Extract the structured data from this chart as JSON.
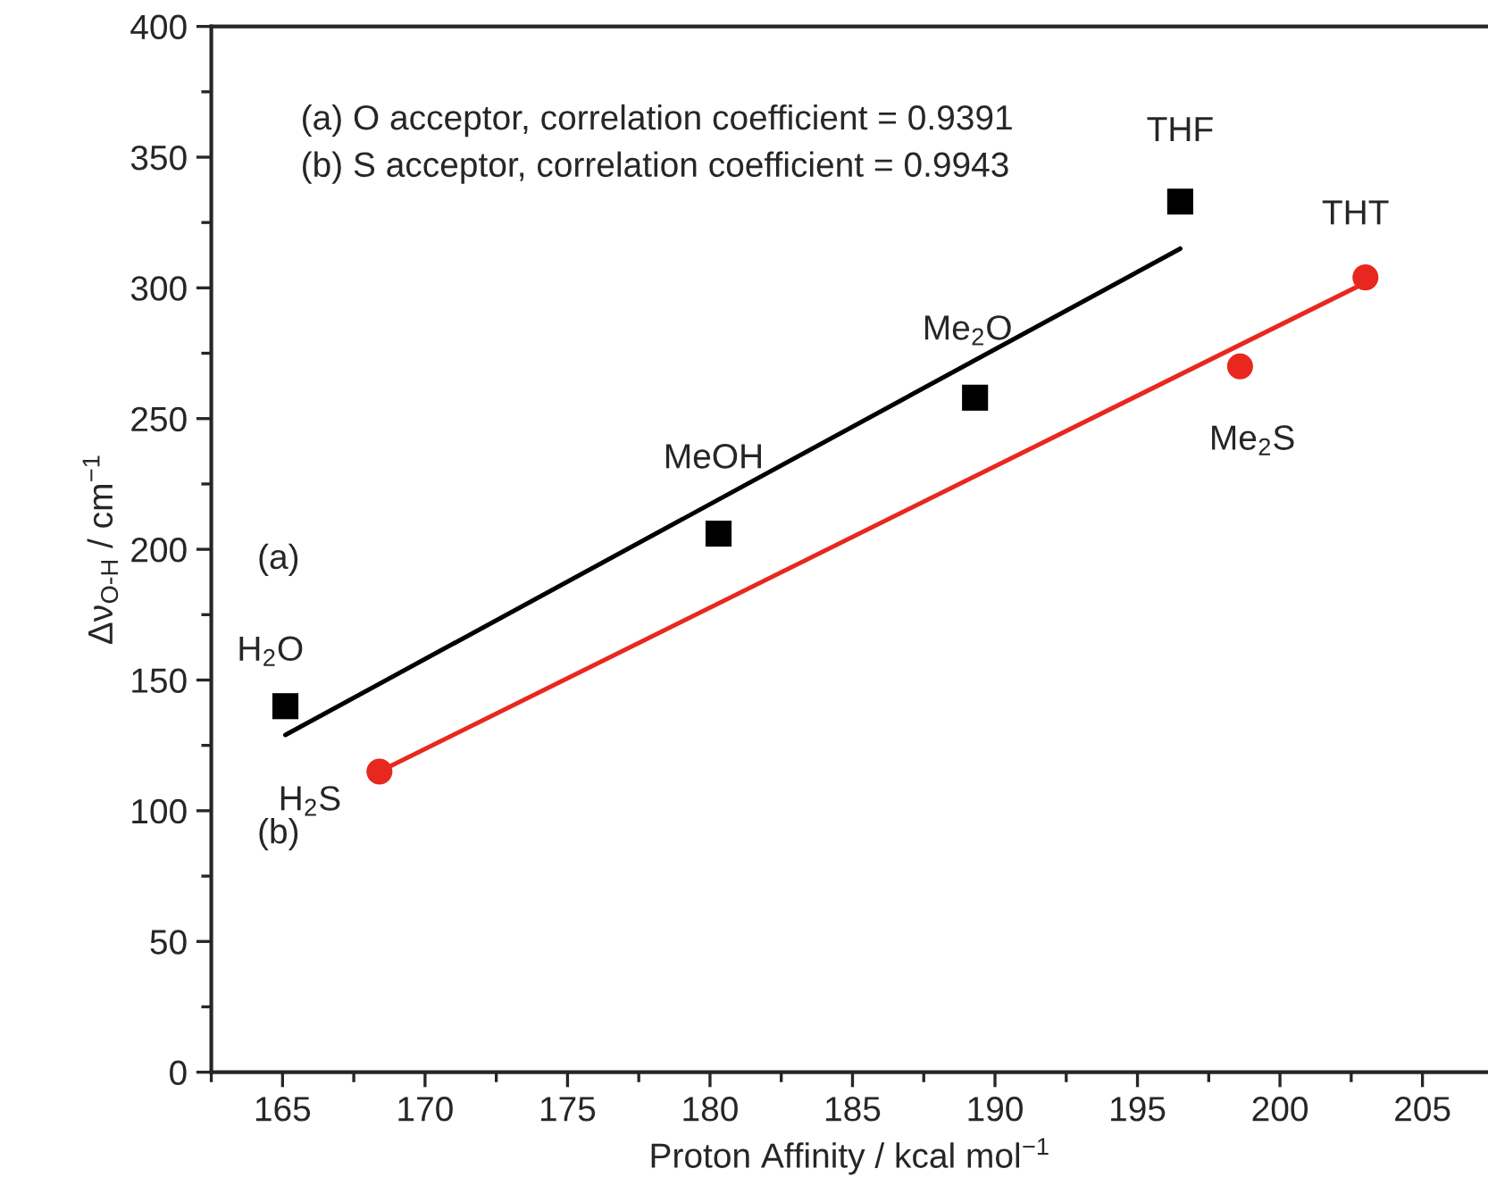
{
  "chart_data": {
    "type": "scatter",
    "xlabel": "Proton Affinity / kcal mol$^{−1}$",
    "ylabel": "Δν$_{O-H}$ / cm$^{−1}$",
    "xlim": [
      162.5,
      207.3
    ],
    "xticks": [
      165,
      170,
      175,
      180,
      185,
      190,
      195,
      200,
      205
    ],
    "ylim": [
      0,
      400
    ],
    "yticks": [
      0,
      50,
      100,
      150,
      200,
      250,
      300,
      350,
      400
    ],
    "grid": false,
    "legend": false,
    "series": [
      {
        "marker": "square",
        "color": "#000000",
        "x": [
          165.1,
          180.3,
          189.3,
          196.5
        ],
        "values": [
          140,
          206,
          258,
          333
        ]
      },
      {
        "marker": "circle",
        "color": "#e8281e",
        "x": [
          168.4,
          198.6,
          203.0
        ],
        "values": [
          115,
          270,
          304
        ]
      },
      {
        "type": "line",
        "marker": "none",
        "color": "#000000",
        "x": [
          165.1,
          196.5
        ],
        "values": [
          129,
          315
        ]
      },
      {
        "type": "line",
        "marker": "none",
        "color": "#e8281e",
        "x": [
          168.4,
          203.0
        ],
        "values": [
          115,
          302
        ]
      }
    ],
    "annotations": [
      "(a) O acceptor, correlation coefficient = 0.9391",
      "(b) S acceptor, correlation coefficient = 0.9943",
      {
        "text": "H$_{2}$O",
        "x": 165.1,
        "y": 140
      },
      {
        "text": "MeOH",
        "x": 180.3,
        "y": 206
      },
      {
        "text": "Me$_{2}$O",
        "x": 189.3,
        "y": 258
      },
      {
        "text": "THF",
        "x": 196.5,
        "y": 333
      },
      {
        "text": "THT",
        "x": 203.0,
        "y": 304
      },
      {
        "text": "Me$_{2}$S",
        "x": 198.6,
        "y": 270
      },
      {
        "text": "H$_{2}$S",
        "x": 168.4,
        "y": 115
      },
      "(a)",
      "(b)"
    ]
  }
}
